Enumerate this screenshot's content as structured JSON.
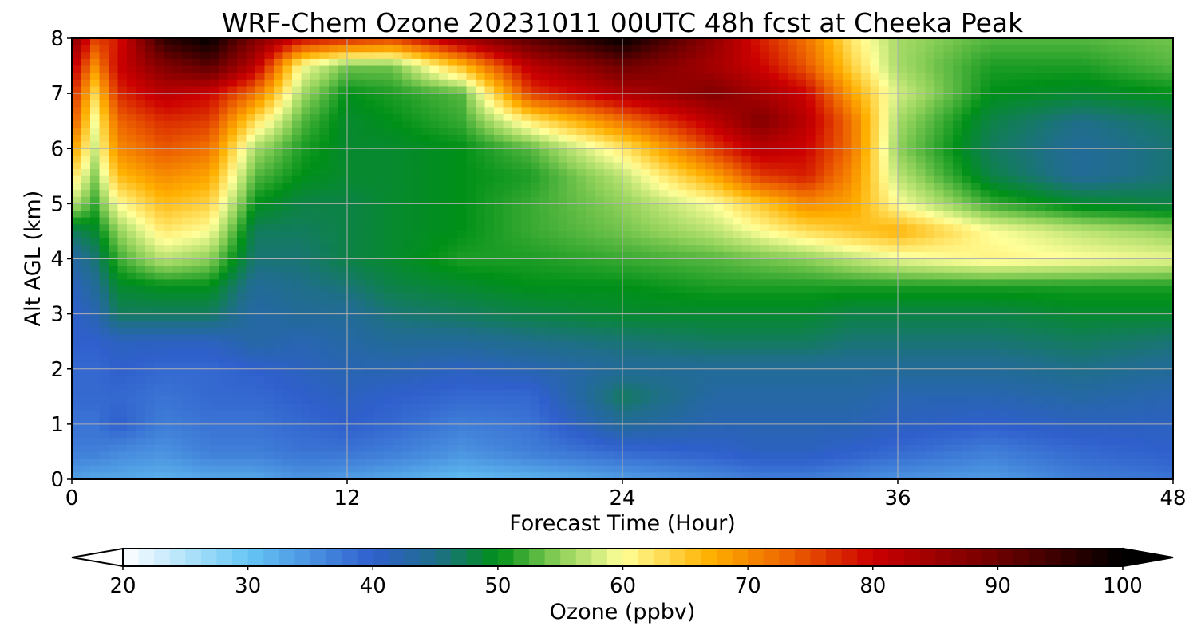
{
  "chart_data": {
    "type": "heatmap",
    "title": "WRF-Chem Ozone  20231011 00UTC 48h fcst at Cheeka Peak",
    "xlabel": "Forecast Time (Hour)",
    "ylabel": "Alt AGL (km)",
    "xlim": [
      0,
      48
    ],
    "ylim": [
      0,
      8
    ],
    "x_ticks": [
      {
        "value": 0,
        "label": "0"
      },
      {
        "value": 12,
        "label": "12"
      },
      {
        "value": 24,
        "label": "24"
      },
      {
        "value": 36,
        "label": "36"
      },
      {
        "value": 48,
        "label": "48"
      }
    ],
    "y_ticks": [
      {
        "value": 0,
        "label": "0"
      },
      {
        "value": 1,
        "label": "1"
      },
      {
        "value": 2,
        "label": "2"
      },
      {
        "value": 3,
        "label": "3"
      },
      {
        "value": 4,
        "label": "4"
      },
      {
        "value": 5,
        "label": "5"
      },
      {
        "value": 6,
        "label": "6"
      },
      {
        "value": 7,
        "label": "7"
      },
      {
        "value": 8,
        "label": "8"
      }
    ],
    "grid": true,
    "x": [
      0,
      1,
      2,
      4,
      6,
      8,
      10,
      12,
      14,
      17,
      20,
      24,
      28,
      30,
      32,
      34,
      36,
      40,
      44,
      48
    ],
    "y": [
      0,
      0.5,
      1,
      1.5,
      2,
      2.5,
      3,
      3.5,
      4,
      4.5,
      5,
      5.5,
      6,
      6.5,
      7,
      7.5,
      8
    ],
    "z": [
      [
        34,
        33,
        33,
        32,
        33,
        33,
        35,
        34,
        33,
        31,
        32,
        34,
        36,
        37,
        37,
        36,
        35,
        34,
        37,
        38
      ],
      [
        37,
        37,
        36,
        35,
        37,
        37,
        38,
        38,
        37,
        35,
        37,
        39,
        40,
        41,
        41,
        40,
        39,
        37,
        39,
        40
      ],
      [
        38,
        38,
        40,
        37,
        38,
        38,
        39,
        40,
        39,
        37,
        38,
        44,
        42,
        42,
        42,
        42,
        41,
        40,
        41,
        41
      ],
      [
        39,
        39,
        39,
        38,
        39,
        39,
        40,
        41,
        40,
        39,
        39,
        47,
        43,
        43,
        43,
        43,
        42,
        42,
        43,
        42
      ],
      [
        39,
        39,
        40,
        39,
        39,
        40,
        41,
        42,
        42,
        41,
        42,
        44,
        44,
        44,
        44,
        44,
        44,
        44,
        45,
        44
      ],
      [
        40,
        40,
        41,
        41,
        41,
        43,
        42,
        43,
        44,
        44,
        45,
        46,
        47,
        47,
        47,
        46,
        46,
        46,
        47,
        46
      ],
      [
        40,
        42,
        47,
        47,
        47,
        43,
        44,
        44,
        46,
        47,
        48,
        49,
        49,
        49,
        49,
        48,
        48,
        48,
        49,
        49
      ],
      [
        41,
        44,
        49,
        50,
        50,
        44,
        45,
        46,
        48,
        49,
        50,
        50,
        51,
        51,
        51,
        51,
        51,
        51,
        51,
        51
      ],
      [
        43,
        46,
        52,
        57,
        55,
        46,
        46,
        48,
        49,
        51,
        51,
        52,
        53,
        54,
        55,
        57,
        59,
        61,
        60,
        59
      ],
      [
        47,
        49,
        55,
        62,
        60,
        47,
        47,
        48,
        49,
        50,
        52,
        54,
        57,
        60,
        63,
        65,
        67,
        60,
        57,
        55
      ],
      [
        57,
        52,
        60,
        66,
        64,
        50,
        48,
        48,
        49,
        50,
        52,
        55,
        60,
        65,
        70,
        68,
        60,
        52,
        49,
        48
      ],
      [
        63,
        55,
        66,
        70,
        68,
        53,
        50,
        49,
        49,
        50,
        51,
        57,
        68,
        76,
        78,
        70,
        57,
        48,
        44,
        46
      ],
      [
        69,
        58,
        70,
        74,
        72,
        56,
        51,
        49,
        49,
        50,
        53,
        62,
        76,
        82,
        80,
        72,
        55,
        47,
        44,
        46
      ],
      [
        75,
        60,
        73,
        77,
        76,
        63,
        53,
        49,
        50,
        52,
        62,
        72,
        82,
        88,
        82,
        72,
        56,
        48,
        45,
        47
      ],
      [
        78,
        64,
        77,
        82,
        80,
        72,
        56,
        50,
        51,
        53,
        76,
        83,
        88,
        84,
        80,
        68,
        58,
        50,
        49,
        50
      ],
      [
        82,
        70,
        80,
        88,
        92,
        82,
        60,
        54,
        54,
        66,
        82,
        90,
        84,
        80,
        74,
        64,
        56,
        51,
        51,
        53
      ],
      [
        88,
        76,
        78,
        96,
        100,
        88,
        80,
        78,
        76,
        85,
        92,
        100,
        86,
        78,
        72,
        62,
        56,
        53,
        53,
        54
      ]
    ],
    "colorbar": {
      "label": "Ozone  (ppbv)",
      "min": 20,
      "max": 100,
      "extend": "both",
      "ticks": [
        {
          "value": 20,
          "label": "20"
        },
        {
          "value": 30,
          "label": "30"
        },
        {
          "value": 40,
          "label": "40"
        },
        {
          "value": 50,
          "label": "50"
        },
        {
          "value": 60,
          "label": "60"
        },
        {
          "value": 70,
          "label": "70"
        },
        {
          "value": 80,
          "label": "80"
        },
        {
          "value": 90,
          "label": "90"
        },
        {
          "value": 100,
          "label": "100"
        }
      ],
      "stops": [
        {
          "value": 20,
          "color": "#ffffff"
        },
        {
          "value": 30,
          "color": "#66c6f4"
        },
        {
          "value": 40,
          "color": "#2f5fcc"
        },
        {
          "value": 45,
          "color": "#1f6e8a"
        },
        {
          "value": 50,
          "color": "#009018"
        },
        {
          "value": 55,
          "color": "#8fd15a"
        },
        {
          "value": 60,
          "color": "#ffff99"
        },
        {
          "value": 67,
          "color": "#ffb000"
        },
        {
          "value": 73,
          "color": "#ee6600"
        },
        {
          "value": 80,
          "color": "#cc0000"
        },
        {
          "value": 90,
          "color": "#6e0000"
        },
        {
          "value": 100,
          "color": "#000000"
        }
      ]
    }
  }
}
